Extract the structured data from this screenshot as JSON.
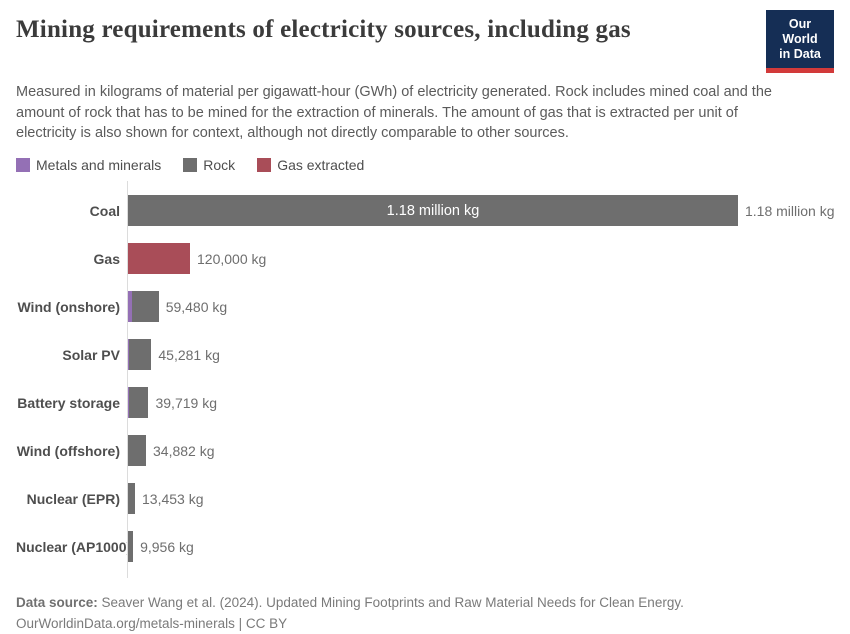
{
  "header": {
    "title": "Mining requirements of electricity sources, including gas",
    "subtitle": "Measured in kilograms of material per gigawatt-hour (GWh) of electricity generated. Rock includes mined coal and the amount of rock that has to be mined for the extraction of minerals. The amount of gas that is extracted per unit of electricity is also shown for context, although not directly comparable to other sources.",
    "logo": {
      "line1": "Our World",
      "line2": "in Data",
      "bg_color": "#152e55",
      "stripe_color": "#d23a3a"
    }
  },
  "legend": {
    "items": [
      {
        "key": "metals",
        "label": "Metals and minerals",
        "color": "#9470b5"
      },
      {
        "key": "rock",
        "label": "Rock",
        "color": "#6e6e6e"
      },
      {
        "key": "gas",
        "label": "Gas extracted",
        "color": "#a94d58"
      }
    ]
  },
  "chart_data": {
    "type": "bar",
    "orientation": "horizontal",
    "unit": "kg of material per GWh",
    "xlim": [
      0,
      1180000
    ],
    "grid": false,
    "legend_position": "top",
    "categories": [
      "Coal",
      "Gas",
      "Wind (onshore)",
      "Solar PV",
      "Battery storage",
      "Wind (offshore)",
      "Nuclear (EPR)",
      "Nuclear (AP1000)"
    ],
    "series": [
      {
        "key": "metals",
        "name": "Metals and minerals",
        "color": "#9470b5",
        "values": [
          0,
          0,
          7000,
          1500,
          1200,
          0,
          0,
          0
        ]
      },
      {
        "key": "rock",
        "name": "Rock",
        "color": "#6e6e6e",
        "values": [
          1180000,
          0,
          52480,
          43781,
          38519,
          34882,
          13453,
          9956
        ]
      },
      {
        "key": "gas",
        "name": "Gas extracted",
        "color": "#a94d58",
        "values": [
          0,
          120000,
          0,
          0,
          0,
          0,
          0,
          0
        ]
      }
    ],
    "totals": [
      1180000,
      120000,
      59480,
      45281,
      39719,
      34882,
      13453,
      9956
    ],
    "value_labels": [
      "1.18 million kg",
      "120,000 kg",
      "59,480 kg",
      "45,281 kg",
      "39,719 kg",
      "34,882 kg",
      "13,453 kg",
      "9,956 kg"
    ],
    "inside_labels": [
      "1.18 million kg",
      "",
      "",
      "",
      "",
      "",
      "",
      ""
    ]
  },
  "footer": {
    "source_label": "Data source:",
    "source_text": " Seaver Wang et al. (2024). Updated Mining Footprints and Raw Material Needs for Clean Energy.",
    "license_text": "OurWorldinData.org/metals-minerals | CC BY"
  }
}
